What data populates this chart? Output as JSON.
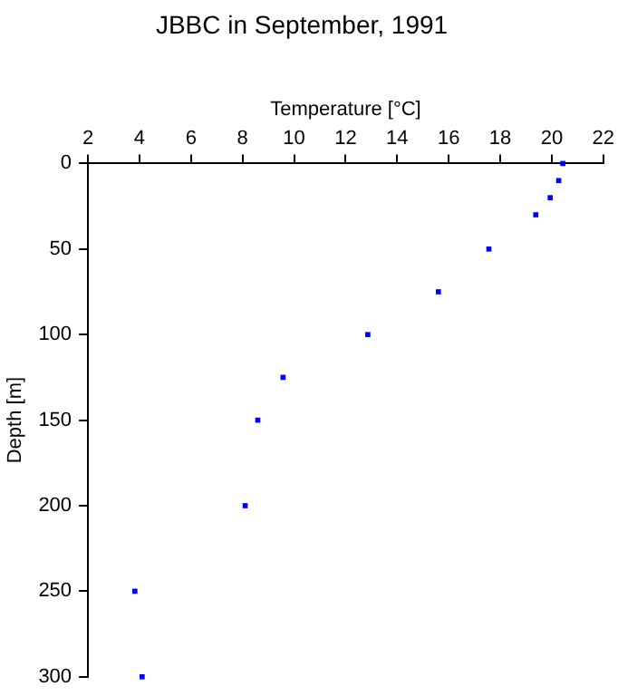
{
  "chart_data": {
    "type": "scatter",
    "title": "JBBC in September, 1991",
    "xlabel": "Temperature [°C]",
    "ylabel": "Depth [m]",
    "series": [
      {
        "color": "#0000ff",
        "x": [
          20.43,
          20.27,
          19.94,
          19.38,
          17.56,
          15.6,
          12.86,
          9.57,
          8.59,
          8.1,
          3.82,
          4.1
        ],
        "values": [
          0,
          10,
          20,
          30,
          50,
          75,
          100,
          125,
          150,
          200,
          250,
          300
        ]
      }
    ],
    "xlim": [
      2,
      22
    ],
    "xticks": [
      2,
      4,
      6,
      8,
      10,
      12,
      14,
      16,
      18,
      20,
      22
    ],
    "ylim": [
      300,
      0
    ],
    "yticks": [
      0,
      50,
      100,
      150,
      200,
      250,
      300
    ],
    "grid": false,
    "legend": false,
    "marker": "square"
  }
}
